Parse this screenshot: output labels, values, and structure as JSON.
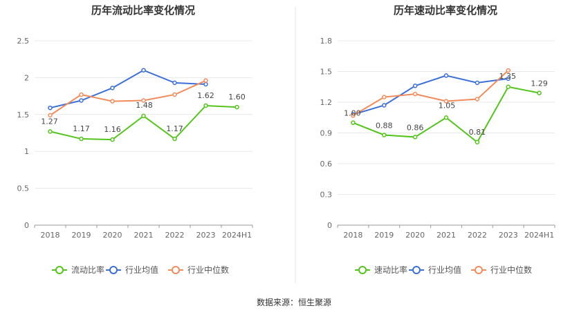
{
  "footer": "数据来源：恒生聚源",
  "chart_data": [
    {
      "type": "line",
      "title": "历年流动比率变化情况",
      "categories": [
        "2018",
        "2019",
        "2020",
        "2021",
        "2022",
        "2023",
        "2024H1"
      ],
      "y_ticks": [
        "0",
        "0.5",
        "1",
        "1.5",
        "2",
        "2.5"
      ],
      "ylim": [
        0,
        2.5
      ],
      "grid": true,
      "legend_position": "bottom",
      "series": [
        {
          "name": "流动比率",
          "color": "#52c41a",
          "values": [
            1.27,
            1.17,
            1.16,
            1.48,
            1.17,
            1.62,
            1.6
          ],
          "labels": [
            "1.27",
            "1.17",
            "1.16",
            "1.48",
            "1.17",
            "1.62",
            "1.60"
          ]
        },
        {
          "name": "行业均值",
          "color": "#3a6fd8",
          "values": [
            1.59,
            1.69,
            1.86,
            2.1,
            1.93,
            1.91,
            null
          ]
        },
        {
          "name": "行业中位数",
          "color": "#f28b5b",
          "values": [
            1.49,
            1.77,
            1.68,
            1.69,
            1.77,
            1.96,
            null
          ]
        }
      ]
    },
    {
      "type": "line",
      "title": "历年速动比率变化情况",
      "categories": [
        "2018",
        "2019",
        "2020",
        "2021",
        "2022",
        "2023",
        "2024H1"
      ],
      "y_ticks": [
        "0",
        "0.3",
        "0.6",
        "0.9",
        "1.2",
        "1.5",
        "1.8"
      ],
      "ylim": [
        0,
        1.8
      ],
      "grid": true,
      "legend_position": "bottom",
      "series": [
        {
          "name": "速动比率",
          "color": "#52c41a",
          "values": [
            1.0,
            0.88,
            0.86,
            1.05,
            0.81,
            1.35,
            1.29
          ],
          "labels": [
            "1.00",
            "0.88",
            "0.86",
            "1.05",
            "0.81",
            "1.35",
            "1.29"
          ]
        },
        {
          "name": "行业均值",
          "color": "#3a6fd8",
          "values": [
            1.08,
            1.17,
            1.36,
            1.46,
            1.39,
            1.43,
            null
          ]
        },
        {
          "name": "行业中位数",
          "color": "#f28b5b",
          "values": [
            1.07,
            1.25,
            1.28,
            1.21,
            1.23,
            1.51,
            null
          ]
        }
      ]
    }
  ]
}
